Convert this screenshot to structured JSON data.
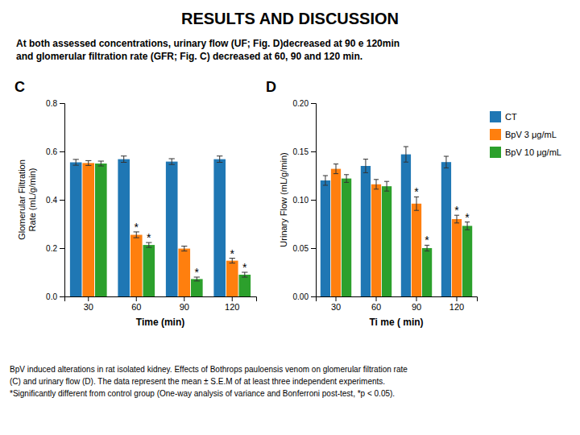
{
  "title": "RESULTS AND DISCUSSION",
  "subtitle": "At both assessed concentrations, urinary flow (UF; Fig. D)decreased at 90 e 120min\nand glomerular filtration rate (GFR; Fig. C) decreased at 60, 90 and 120 min.",
  "annotations": [
    "BpV induced alterations in rat isolated kidney. Effects of Bothrops pauloensis venom on glomerular filtration rate\n(C) and urinary flow (D). The data represent the mean ± S.E.M of at least three independent experiments.\n*Significantly different from control group (One-way analysis of variance and Bonferroni post-test, *p < 0.05)."
  ],
  "chart_data": [
    {
      "type": "bar",
      "title": "C",
      "x_label": "Time (min)",
      "y_label": "Glomerular Filtration\nRate (mL/g/min)",
      "categories": [
        "30",
        "60",
        "90",
        "120"
      ],
      "series": [
        {
          "name": "CT",
          "values": [
            0.555,
            0.568,
            0.558,
            0.568
          ],
          "errors": [
            0.012,
            0.013,
            0.012,
            0.013
          ]
        },
        {
          "name": "BpV 3 μg/mL",
          "values": [
            0.552,
            0.255,
            0.198,
            0.148
          ],
          "errors": [
            0.01,
            0.012,
            0.01,
            0.01
          ]
        },
        {
          "name": "BpV 10 μg/mL",
          "values": [
            0.55,
            0.213,
            0.072,
            0.09
          ],
          "errors": [
            0.01,
            0.01,
            0.008,
            0.01
          ]
        }
      ],
      "ylim": [
        0.0,
        0.8
      ],
      "yticks": [
        {
          "value": 0.0,
          "label": "0.0"
        },
        0.2,
        0.4,
        0.6,
        0.8
      ],
      "grid": false,
      "annotations": [
        {
          "text": "*",
          "series": "BpV 3 μg/mL",
          "category": "60"
        },
        {
          "text": "*",
          "series": "BpV 3 μg/mL",
          "category": "120"
        },
        {
          "text": "*",
          "series": "BpV 10 μg/mL",
          "category": "60"
        },
        {
          "text": "*",
          "series": "BpV 10 μg/mL",
          "category": "90"
        },
        {
          "text": "*",
          "series": "BpV 10 μg/mL",
          "category": "120"
        }
      ]
    },
    {
      "type": "bar",
      "title": "D",
      "x_label": "Ti me ( min)",
      "y_label": "Urinary Flow (mL/g/min)",
      "categories": [
        "30",
        "60",
        "90",
        "120"
      ],
      "series": [
        {
          "name": "CT",
          "values": [
            0.12,
            0.135,
            0.147,
            0.139
          ],
          "errors": [
            0.005,
            0.007,
            0.008,
            0.006
          ]
        },
        {
          "name": "BpV 3 μg/mL",
          "values": [
            0.132,
            0.116,
            0.096,
            0.08
          ],
          "errors": [
            0.005,
            0.005,
            0.007,
            0.004
          ]
        },
        {
          "name": "BpV 10 μg/mL",
          "values": [
            0.122,
            0.114,
            0.05,
            0.073
          ],
          "errors": [
            0.004,
            0.005,
            0.003,
            0.004
          ]
        }
      ],
      "ylim": [
        0.0,
        0.2
      ],
      "yticks": [
        {
          "value": 0.0,
          "label": "0.00"
        },
        0.05,
        {
          "value": 0.1,
          "label": "0.10"
        },
        0.15,
        {
          "value": 0.2,
          "label": "0.20"
        }
      ],
      "grid": false,
      "legend": "right",
      "annotations": [
        {
          "text": "*",
          "series": "BpV 3 μg/mL",
          "category": "90"
        },
        {
          "text": "*",
          "series": "BpV 3 μg/mL",
          "category": "120"
        },
        {
          "text": "*",
          "series": "BpV 10 μg/mL",
          "category": "90"
        },
        {
          "text": "*",
          "series": "BpV 10 μg/mL",
          "category": "120"
        }
      ]
    }
  ]
}
